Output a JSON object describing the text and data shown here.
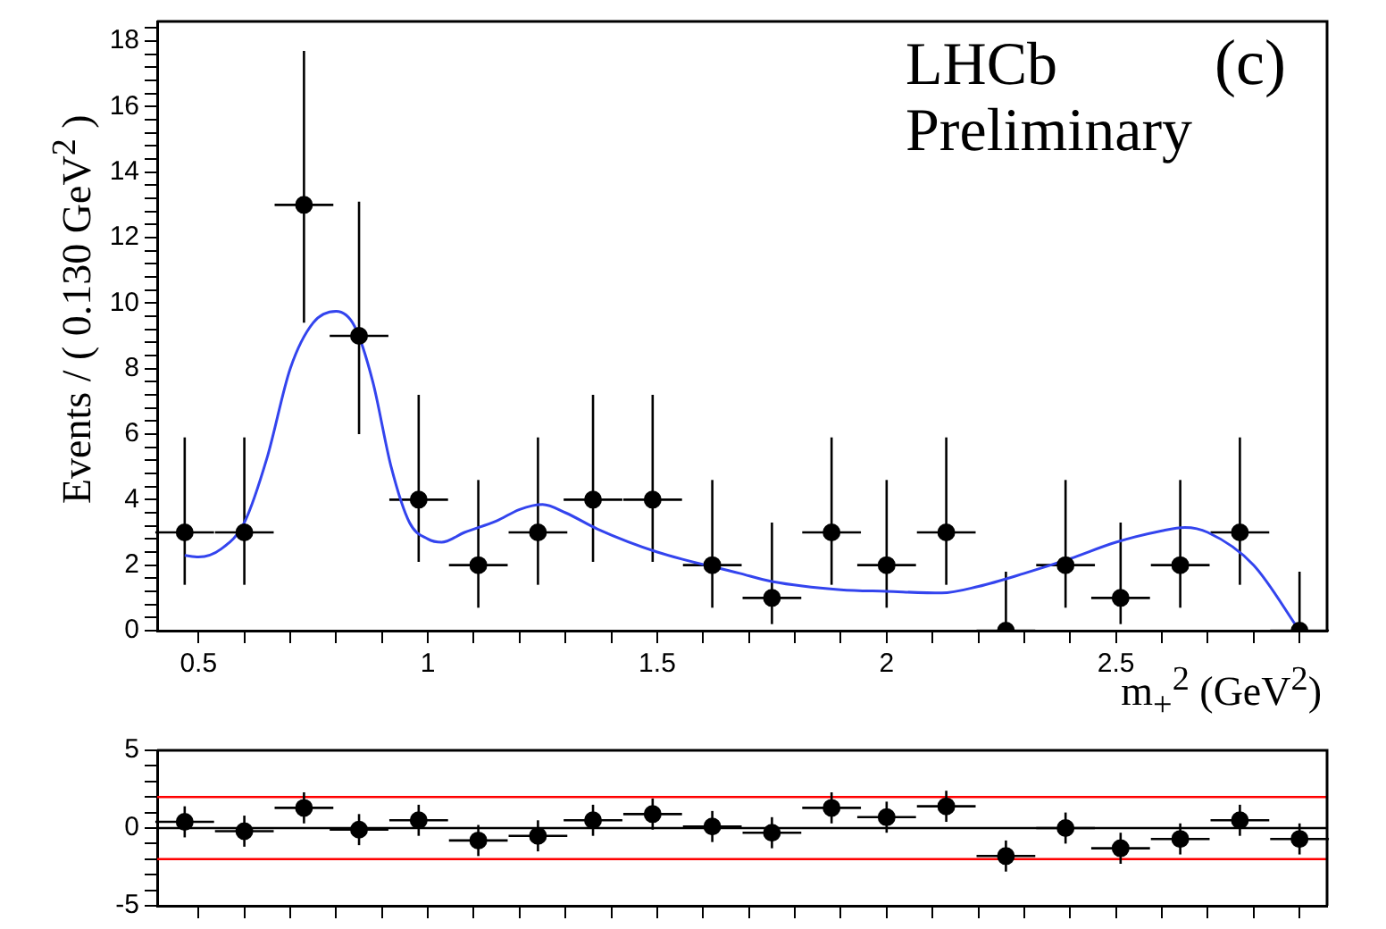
{
  "chart_data": [
    {
      "type": "scatter",
      "xlabel": "m$_{+}$$^{2}$ (GeV$^{2}$)",
      "ylabel": "Events / ( 0.130 GeV$^{2}$ )",
      "annotations": [
        "LHCb",
        "Preliminary",
        "(c)"
      ],
      "xlim": [
        0.41,
        2.96
      ],
      "xticks": [
        0.5,
        {
          "value": 0.6,
          "label": null
        },
        {
          "value": 0.7,
          "label": null
        },
        {
          "value": 0.8,
          "label": null
        },
        {
          "value": 0.9,
          "label": null
        },
        1,
        {
          "value": 1.1,
          "label": null
        },
        {
          "value": 1.2,
          "label": null
        },
        {
          "value": 1.3,
          "label": null
        },
        {
          "value": 1.4,
          "label": null
        },
        1.5,
        {
          "value": 1.6,
          "label": null
        },
        {
          "value": 1.7,
          "label": null
        },
        {
          "value": 1.8,
          "label": null
        },
        {
          "value": 1.9,
          "label": null
        },
        2,
        {
          "value": 2.1,
          "label": null
        },
        {
          "value": 2.2,
          "label": null
        },
        {
          "value": 2.3,
          "label": null
        },
        {
          "value": 2.4,
          "label": null
        },
        2.5,
        {
          "value": 2.6,
          "label": null
        },
        {
          "value": 2.7,
          "label": null
        },
        {
          "value": 2.8,
          "label": null
        },
        {
          "value": 2.9,
          "label": null
        }
      ],
      "ylim": [
        0,
        18.6
      ],
      "yticks": [
        0,
        {
          "value": 0.4,
          "label": null
        },
        {
          "value": 0.8,
          "label": null
        },
        {
          "value": 1.2,
          "label": null
        },
        {
          "value": 1.6,
          "label": null
        },
        2,
        {
          "value": 2.4,
          "label": null
        },
        {
          "value": 2.8,
          "label": null
        },
        {
          "value": 3.2,
          "label": null
        },
        {
          "value": 3.6,
          "label": null
        },
        4,
        {
          "value": 4.4,
          "label": null
        },
        {
          "value": 4.8,
          "label": null
        },
        {
          "value": 5.2,
          "label": null
        },
        {
          "value": 5.6,
          "label": null
        },
        6,
        {
          "value": 6.4,
          "label": null
        },
        {
          "value": 6.8,
          "label": null
        },
        {
          "value": 7.2,
          "label": null
        },
        {
          "value": 7.6,
          "label": null
        },
        8,
        {
          "value": 8.4,
          "label": null
        },
        {
          "value": 8.8,
          "label": null
        },
        {
          "value": 9.2,
          "label": null
        },
        {
          "value": 9.6,
          "label": null
        },
        10,
        {
          "value": 10.4,
          "label": null
        },
        {
          "value": 10.8,
          "label": null
        },
        {
          "value": 11.2,
          "label": null
        },
        {
          "value": 11.6,
          "label": null
        },
        12,
        {
          "value": 12.4,
          "label": null
        },
        {
          "value": 12.8,
          "label": null
        },
        {
          "value": 13.2,
          "label": null
        },
        {
          "value": 13.6,
          "label": null
        },
        14,
        {
          "value": 14.4,
          "label": null
        },
        {
          "value": 14.8,
          "label": null
        },
        {
          "value": 15.2,
          "label": null
        },
        {
          "value": 15.6,
          "label": null
        },
        16,
        {
          "value": 16.4,
          "label": null
        },
        {
          "value": 16.8,
          "label": null
        },
        {
          "value": 17.2,
          "label": null
        },
        {
          "value": 17.6,
          "label": null
        },
        18,
        {
          "value": 18.4,
          "label": null
        }
      ],
      "grid": false,
      "legend": false,
      "series": [
        {
          "type": "scatter",
          "marker": "circle",
          "color": "#000000",
          "x": [
            0.47,
            0.6,
            0.73,
            0.85,
            0.98,
            1.11,
            1.24,
            1.36,
            1.49,
            1.62,
            1.75,
            1.88,
            2.0,
            2.13,
            2.26,
            2.39,
            2.51,
            2.64,
            2.77,
            2.9
          ],
          "values": [
            3,
            3,
            13,
            9,
            4,
            2,
            3,
            4,
            4,
            2,
            1,
            3,
            2,
            3,
            0,
            2,
            1,
            2,
            3,
            0
          ],
          "errors": [
            [
              1.4,
              5.9
            ],
            [
              1.4,
              5.9
            ],
            [
              9.4,
              17.7
            ],
            [
              6.0,
              13.1
            ],
            [
              2.1,
              7.2
            ],
            [
              0.7,
              4.6
            ],
            [
              1.4,
              5.9
            ],
            [
              2.1,
              7.2
            ],
            [
              2.1,
              7.2
            ],
            [
              0.7,
              4.6
            ],
            [
              0.2,
              3.3
            ],
            [
              1.4,
              5.9
            ],
            [
              0.7,
              4.6
            ],
            [
              1.4,
              5.9
            ],
            [
              0,
              1.8
            ],
            [
              0.7,
              4.6
            ],
            [
              0.2,
              3.3
            ],
            [
              0.7,
              4.6
            ],
            [
              1.4,
              5.9
            ],
            [
              0,
              1.8
            ]
          ],
          "xerrors": [
            0.064,
            0.064,
            0.064,
            0.064,
            0.064,
            0.064,
            0.064,
            0.064,
            0.064,
            0.064,
            0.064,
            0.064,
            0.064,
            0.064,
            0.064,
            0.064,
            0.064,
            0.064,
            0.064,
            0.064
          ]
        },
        {
          "type": "line",
          "color": "#3344ee",
          "x": [
            0.47,
            0.5,
            0.55,
            0.6,
            0.65,
            0.7,
            0.75,
            0.8,
            0.84,
            0.88,
            0.92,
            0.96,
            1.0,
            1.03,
            1.08,
            1.15,
            1.2,
            1.25,
            1.3,
            1.37,
            1.5,
            1.68,
            1.75,
            1.9,
            2.0,
            2.12,
            2.2,
            2.3,
            2.4,
            2.5,
            2.6,
            2.65,
            2.7,
            2.8,
            2.9
          ],
          "values": [
            2.3,
            2.25,
            2.5,
            3.3,
            5.3,
            8.0,
            9.4,
            9.75,
            9.3,
            7.6,
            5.0,
            3.3,
            2.8,
            2.7,
            3.0,
            3.35,
            3.7,
            3.85,
            3.6,
            3.1,
            2.4,
            1.75,
            1.5,
            1.25,
            1.2,
            1.15,
            1.35,
            1.75,
            2.2,
            2.7,
            3.05,
            3.15,
            3.0,
            2.0,
            0.0
          ]
        }
      ]
    },
    {
      "type": "scatter",
      "xlim": [
        0.41,
        2.96
      ],
      "xticks": [
        0.5,
        {
          "value": 0.6,
          "label": null
        },
        {
          "value": 0.7,
          "label": null
        },
        {
          "value": 0.8,
          "label": null
        },
        {
          "value": 0.9,
          "label": null
        },
        1,
        {
          "value": 1.1,
          "label": null
        },
        {
          "value": 1.2,
          "label": null
        },
        {
          "value": 1.3,
          "label": null
        },
        {
          "value": 1.4,
          "label": null
        },
        1.5,
        {
          "value": 1.6,
          "label": null
        },
        {
          "value": 1.7,
          "label": null
        },
        {
          "value": 1.8,
          "label": null
        },
        {
          "value": 1.9,
          "label": null
        },
        2,
        {
          "value": 2.1,
          "label": null
        },
        {
          "value": 2.2,
          "label": null
        },
        {
          "value": 2.3,
          "label": null
        },
        {
          "value": 2.4,
          "label": null
        },
        2.5,
        {
          "value": 2.6,
          "label": null
        },
        {
          "value": 2.7,
          "label": null
        },
        {
          "value": 2.8,
          "label": null
        },
        {
          "value": 2.9,
          "label": null
        }
      ],
      "ylim": [
        -5,
        5
      ],
      "yticks": [
        -5,
        {
          "value": -4,
          "label": null
        },
        {
          "value": -3,
          "label": null
        },
        {
          "value": -2,
          "label": null
        },
        {
          "value": -1,
          "label": null
        },
        0,
        {
          "value": 1,
          "label": null
        },
        {
          "value": 2,
          "label": null
        },
        {
          "value": 3,
          "label": null
        },
        {
          "value": 4,
          "label": null
        },
        5
      ],
      "tick_labels": "y",
      "grid": false,
      "legend": false,
      "ref_lines": [
        {
          "axis": "y",
          "value": 2,
          "color": "#ff0000"
        },
        {
          "axis": "y",
          "value": -2,
          "color": "#ff0000"
        },
        {
          "axis": "y",
          "value": 0,
          "color": "#000000"
        }
      ],
      "series": [
        {
          "type": "scatter",
          "marker": "circle",
          "color": "#000000",
          "x": [
            0.47,
            0.6,
            0.73,
            0.85,
            0.98,
            1.11,
            1.24,
            1.36,
            1.49,
            1.62,
            1.75,
            1.88,
            2.0,
            2.13,
            2.26,
            2.39,
            2.51,
            2.64,
            2.77,
            2.9
          ],
          "values": [
            0.4,
            -0.2,
            1.3,
            -0.1,
            0.5,
            -0.8,
            -0.5,
            0.5,
            0.9,
            0.1,
            -0.3,
            1.3,
            0.7,
            1.4,
            -1.8,
            0.0,
            -1.3,
            -0.7,
            0.5,
            -0.7
          ],
          "errors": [
            1,
            1,
            1,
            1,
            1,
            1,
            1,
            1,
            1,
            1,
            1,
            1,
            1,
            1,
            1,
            1,
            1,
            1,
            1,
            1
          ],
          "xerrors": [
            0.064,
            0.064,
            0.064,
            0.064,
            0.064,
            0.064,
            0.064,
            0.064,
            0.064,
            0.064,
            0.064,
            0.064,
            0.064,
            0.064,
            0.064,
            0.064,
            0.064,
            0.064,
            0.064,
            0.064
          ]
        }
      ]
    }
  ]
}
